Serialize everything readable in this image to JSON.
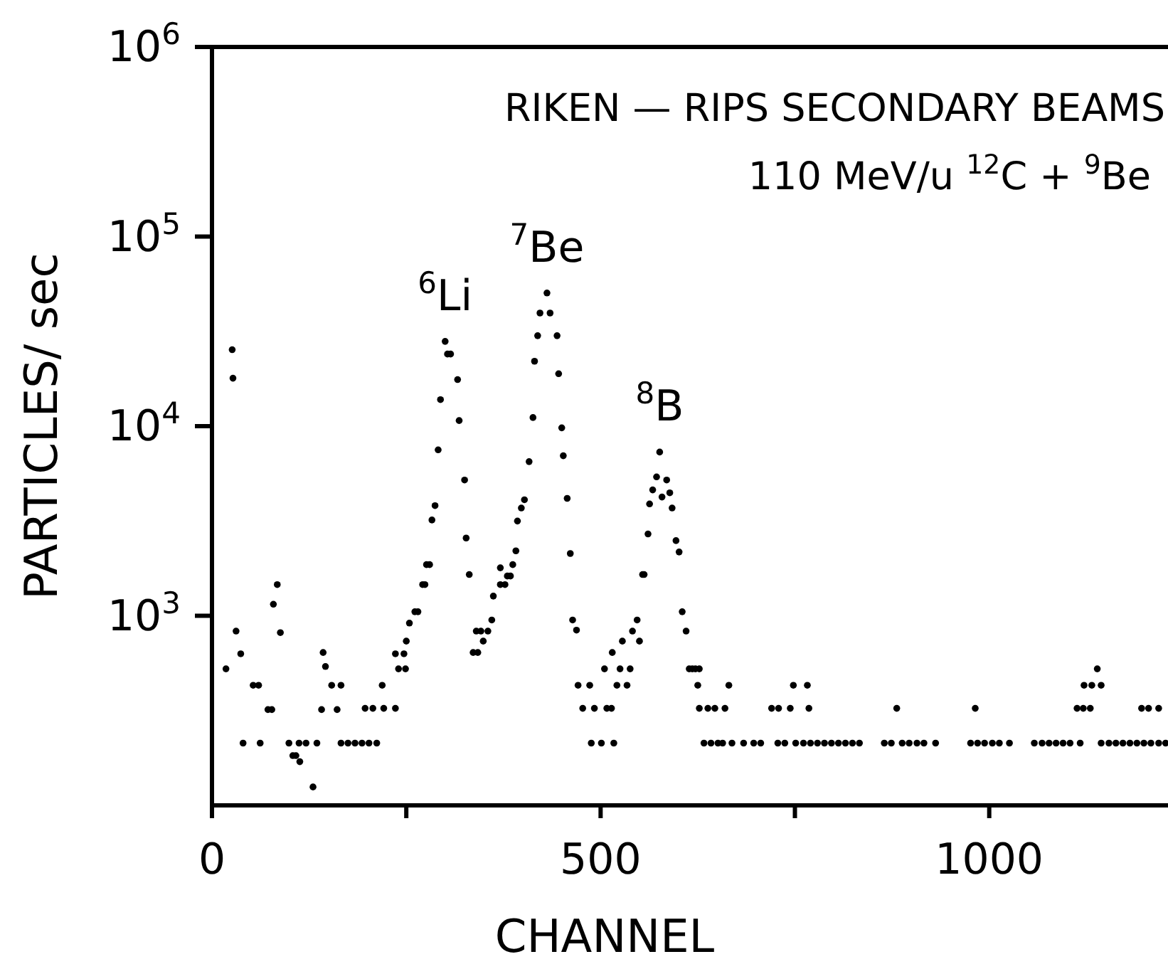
{
  "chart_data": {
    "type": "scatter",
    "title": "RIKEN — RIPS SECONDARY BEAMS",
    "subtitle": "110 MeV/u $^{12}$C + $^{9}$Be",
    "xlabel": "CHANNEL",
    "ylabel": "PARTICLES/ sec",
    "annotations": [
      {
        "text": "$^{6}$Li",
        "x": 300,
        "y": 28000
      },
      {
        "text": "$^{7}$Be",
        "x": 431,
        "y": 50400
      },
      {
        "text": "$^{8}$B",
        "x": 576,
        "y": 7300
      }
    ],
    "log": "y",
    "grid": false,
    "marker": "circle",
    "xlim": [
      0,
      1230
    ],
    "xticks": [
      0,
      {
        "value": 250,
        "label": null
      },
      500,
      {
        "value": 750,
        "label": null
      },
      1000
    ],
    "ylim": [
      100,
      1000000
    ],
    "yticks": [
      {
        "value": 1000,
        "label": "10$^{3}$"
      },
      {
        "value": 10000,
        "label": "10$^{4}$"
      },
      {
        "value": 100000,
        "label": "10$^{5}$"
      },
      {
        "value": 1000000,
        "label": "10$^{6}$"
      }
    ],
    "series": [
      {
        "color": "#000000",
        "x": [
          18,
          26,
          27,
          31,
          37,
          40,
          53,
          60,
          62,
          72,
          77,
          79,
          84,
          88,
          99,
          104,
          108,
          112,
          113,
          121,
          130,
          135,
          141,
          143,
          146,
          154,
          161,
          166,
          166,
          175,
          184,
          193,
          197,
          202,
          207,
          212,
          219,
          221,
          236,
          236,
          240,
          247,
          249,
          250,
          254,
          261,
          265,
          271,
          274,
          276,
          280,
          283,
          287,
          291,
          294,
          300,
          303,
          307,
          316,
          318,
          325,
          327,
          331,
          336,
          340,
          342,
          346,
          349,
          355,
          360,
          362,
          371,
          371,
          377,
          380,
          384,
          387,
          391,
          393,
          398,
          402,
          408,
          413,
          415,
          419,
          422,
          431,
          435,
          444,
          446,
          450,
          452,
          457,
          461,
          464,
          469,
          471,
          477,
          486,
          488,
          492,
          501,
          505,
          508,
          514,
          515,
          517,
          521,
          525,
          528,
          534,
          538,
          541,
          547,
          550,
          554,
          556,
          561,
          563,
          567,
          572,
          576,
          579,
          585,
          589,
          592,
          597,
          601,
          605,
          610,
          614,
          618,
          622,
          625,
          627,
          627,
          633,
          638,
          642,
          647,
          651,
          657,
          660,
          665,
          669,
          684,
          697,
          706,
          720,
          728,
          729,
          737,
          744,
          748,
          751,
          761,
          766,
          768,
          770,
          779,
          788,
          797,
          806,
          815,
          824,
          833,
          865,
          874,
          881,
          888,
          897,
          907,
          916,
          931,
          976,
          982,
          985,
          994,
          1004,
          1013,
          1026,
          1058,
          1068,
          1077,
          1086,
          1095,
          1104,
          1113,
          1117,
          1121,
          1122,
          1130,
          1132,
          1139,
          1144,
          1144,
          1154,
          1163,
          1172,
          1181,
          1190,
          1196,
          1199,
          1205,
          1208,
          1218,
          1218,
          1227
        ],
        "values": [
          525,
          25300,
          17900,
          830,
          630,
          213,
          430,
          430,
          213,
          320,
          320,
          1150,
          1460,
          815,
          213,
          183,
          183,
          213,
          170,
          213,
          125,
          213,
          320,
          640,
          540,
          430,
          320,
          430,
          213,
          213,
          213,
          213,
          325,
          213,
          325,
          213,
          430,
          325,
          325,
          630,
          525,
          630,
          525,
          735,
          915,
          1050,
          1050,
          1460,
          1460,
          1860,
          1860,
          3200,
          3810,
          7500,
          13800,
          28000,
          24000,
          24000,
          17600,
          10700,
          5200,
          2570,
          1650,
          640,
          830,
          640,
          830,
          735,
          830,
          950,
          1270,
          1460,
          1790,
          1460,
          1620,
          1620,
          1860,
          2200,
          3160,
          3700,
          4090,
          6500,
          11100,
          22000,
          30000,
          39500,
          50400,
          39500,
          30000,
          18900,
          9800,
          6980,
          4160,
          2130,
          950,
          840,
          430,
          325,
          430,
          213,
          325,
          213,
          525,
          325,
          325,
          640,
          213,
          430,
          525,
          735,
          430,
          525,
          830,
          950,
          735,
          1650,
          1650,
          2700,
          3890,
          4610,
          5400,
          7300,
          4230,
          5200,
          4450,
          3700,
          2490,
          2170,
          1050,
          830,
          525,
          525,
          525,
          430,
          525,
          325,
          213,
          325,
          213,
          325,
          213,
          213,
          325,
          430,
          213,
          213,
          213,
          213,
          325,
          213,
          325,
          213,
          325,
          430,
          213,
          213,
          430,
          325,
          213,
          213,
          213,
          213,
          213,
          213,
          213,
          213,
          213,
          213,
          325,
          213,
          213,
          213,
          213,
          213,
          213,
          325,
          213,
          213,
          213,
          213,
          213,
          213,
          213,
          213,
          213,
          213,
          213,
          325,
          213,
          325,
          430,
          325,
          430,
          525,
          430,
          213,
          213,
          213,
          213,
          213,
          213,
          325,
          213,
          325,
          213,
          325,
          213,
          213
        ]
      }
    ]
  }
}
